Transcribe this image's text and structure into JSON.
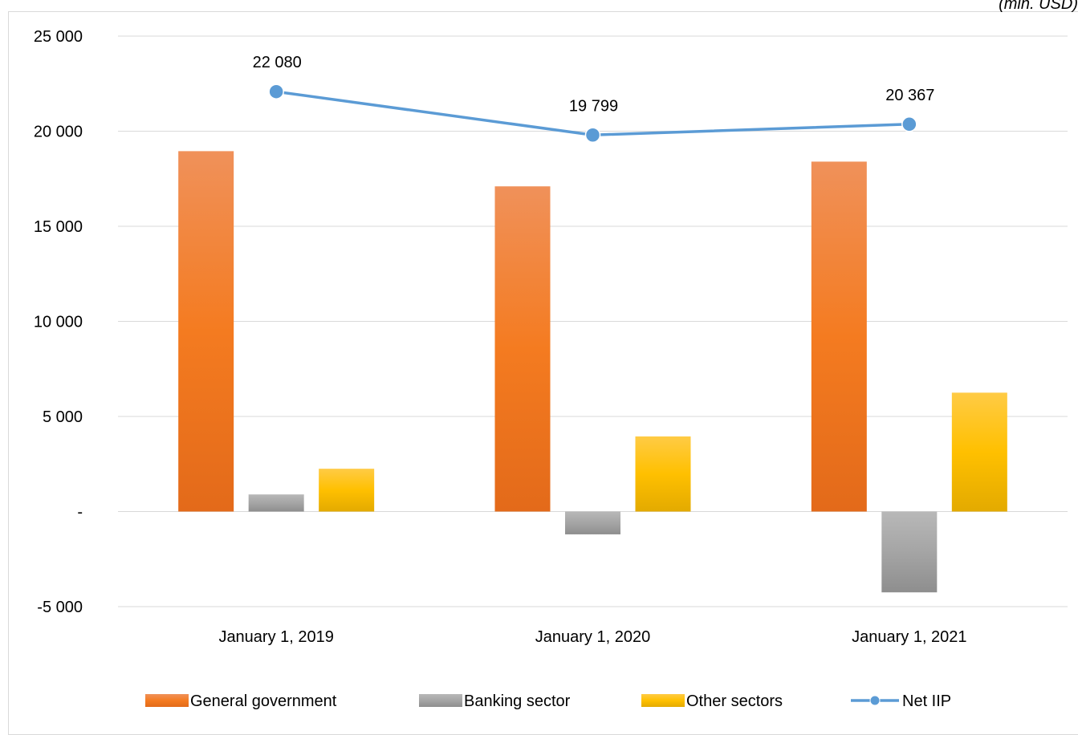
{
  "chart_data": {
    "type": "bar",
    "unit_note": "(mln. USD)",
    "categories": [
      "January 1, 2019",
      "January 1, 2020",
      "January 1, 2021"
    ],
    "ylim": [
      -5000,
      25000
    ],
    "y_ticks": [
      25000,
      20000,
      15000,
      10000,
      5000,
      0,
      -5000
    ],
    "y_tick_labels": [
      "25 000",
      "20 000",
      "15 000",
      "10 000",
      "5 000",
      "-",
      "-5 000"
    ],
    "grid": true,
    "legend_position": "bottom",
    "series": [
      {
        "name": "General government",
        "kind": "bar",
        "color": "#ED7D31",
        "values": [
          18950,
          17100,
          18400
        ]
      },
      {
        "name": "Banking sector",
        "kind": "bar",
        "color": "#A5A5A5",
        "values": [
          900,
          -1200,
          -4250
        ]
      },
      {
        "name": "Other sectors",
        "kind": "bar",
        "color": "#FFC000",
        "values": [
          2250,
          3950,
          6250
        ]
      },
      {
        "name": "Net IIP",
        "kind": "line",
        "color": "#5B9BD5",
        "values": [
          22080,
          19799,
          20367
        ],
        "labels": [
          "22 080",
          "19 799",
          "20 367"
        ]
      }
    ]
  }
}
